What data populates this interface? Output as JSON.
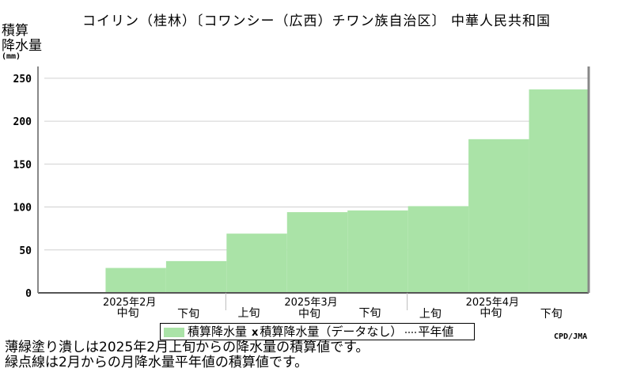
{
  "chart_data": {
    "type": "bar",
    "title": "コイリン（桂林）〔コワンシー（広西）チワン族自治区〕 中華人民共和国",
    "ylabel_lines": [
      "積算",
      "降水量"
    ],
    "yunit": "(mm)",
    "ylim": [
      0,
      260
    ],
    "yticks": [
      0,
      50,
      100,
      150,
      200,
      250
    ],
    "grid": true,
    "categories": [
      "2025年2月上旬",
      "2025年2月中旬",
      "2025年2月下旬",
      "2025年3月上旬",
      "2025年3月中旬",
      "2025年3月下旬",
      "2025年4月上旬",
      "2025年4月中旬",
      "2025年4月下旬"
    ],
    "series": [
      {
        "name": "積算降水量",
        "color": "#aae3a7",
        "values": [
          null,
          29,
          37,
          69,
          94,
          96,
          101,
          179,
          237
        ]
      }
    ],
    "xlabels": {
      "months": [
        "2025年2月",
        "2025年3月",
        "2025年4月"
      ],
      "periods": [
        "中旬",
        "下旬",
        "上旬",
        "中旬",
        "下旬",
        "上旬",
        "中旬",
        "下旬"
      ]
    },
    "legend": {
      "position": "bottom",
      "items": [
        "積算降水量",
        "x",
        "積算降水量（データなし）",
        "平年値"
      ]
    }
  },
  "credit": "CPD/JMA",
  "notes": [
    "薄緑塗り潰しは2025年2月上旬からの降水量の積算値です。",
    "緑点線は2月からの月降水量平年値の積算値です。"
  ]
}
